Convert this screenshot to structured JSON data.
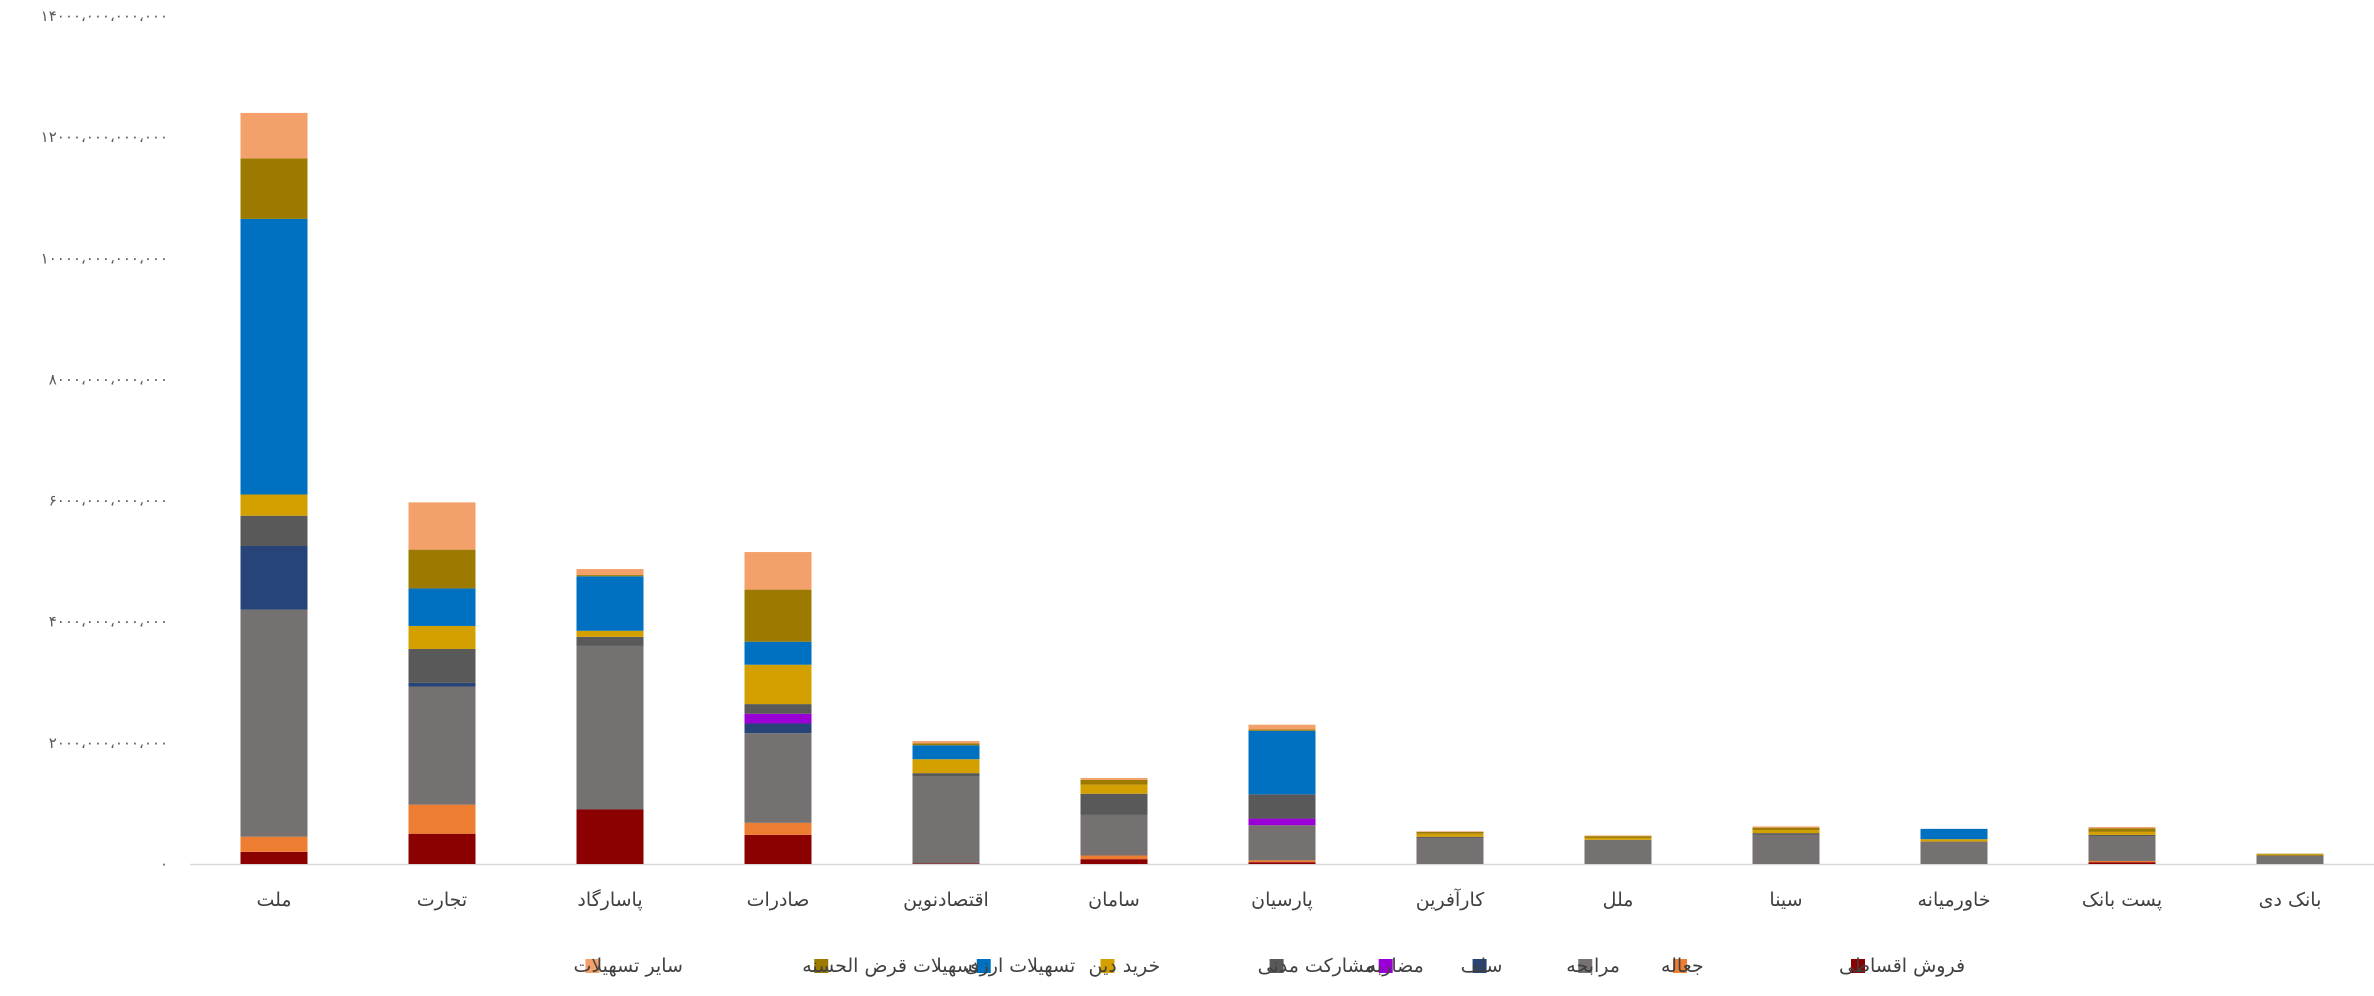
{
  "chart_data": {
    "type": "bar",
    "stacked": true,
    "title": "",
    "xlabel": "",
    "ylabel": "",
    "ylim": [
      0,
      14000000000000
    ],
    "y_ticks": [
      {
        "value": 0,
        "label": "۰"
      },
      {
        "value": 2000000000000,
        "label": "۲۰۰۰،۰۰۰،۰۰۰،۰۰۰"
      },
      {
        "value": 4000000000000,
        "label": "۴۰۰۰،۰۰۰،۰۰۰،۰۰۰"
      },
      {
        "value": 6000000000000,
        "label": "۶۰۰۰،۰۰۰،۰۰۰،۰۰۰"
      },
      {
        "value": 8000000000000,
        "label": "۸۰۰۰،۰۰۰،۰۰۰،۰۰۰"
      },
      {
        "value": 10000000000000,
        "label": "۱۰۰۰۰،۰۰۰،۰۰۰،۰۰۰"
      },
      {
        "value": 12000000000000,
        "label": "۱۲۰۰۰،۰۰۰،۰۰۰،۰۰۰"
      },
      {
        "value": 14000000000000,
        "label": "۱۴۰۰۰،۰۰۰،۰۰۰،۰۰۰"
      }
    ],
    "grid": false,
    "legend_position": "bottom",
    "categories": [
      "ملت",
      "تجارت",
      "پاسارگاد",
      "صادرات",
      "اقتصادنوین",
      "سامان",
      "پارسیان",
      "کارآفرین",
      "ملل",
      "سینا",
      "خاورمیانه",
      "پست بانک",
      "بانک دی"
    ],
    "series": [
      {
        "name": "فروش اقساطی",
        "color": "#8B0000",
        "values": [
          200000000000,
          500000000000,
          900000000000,
          480000000000,
          10000000000,
          80000000000,
          30000000000,
          0,
          0,
          0,
          0,
          30000000000,
          0
        ]
      },
      {
        "name": "جعاله",
        "color": "#ED7D31",
        "values": [
          250000000000,
          480000000000,
          0,
          200000000000,
          0,
          60000000000,
          30000000000,
          0,
          0,
          0,
          0,
          20000000000,
          0
        ]
      },
      {
        "name": "مرابحه",
        "color": "#767171",
        "values": [
          3750000000000,
          1950000000000,
          2700000000000,
          1480000000000,
          1430000000000,
          670000000000,
          580000000000,
          430000000000,
          400000000000,
          480000000000,
          370000000000,
          400000000000,
          120000000000
        ]
      },
      {
        "name": "سلف",
        "color": "#264478",
        "values": [
          1050000000000,
          60000000000,
          0,
          160000000000,
          0,
          0,
          0,
          0,
          0,
          0,
          0,
          0,
          0
        ]
      },
      {
        "name": "مضاربه",
        "color": "#9A00D5",
        "values": [
          0,
          0,
          0,
          160000000000,
          0,
          0,
          110000000000,
          0,
          0,
          0,
          0,
          0,
          0
        ]
      },
      {
        "name": "مشارکت مدنی",
        "color": "#595959",
        "values": [
          500000000000,
          560000000000,
          150000000000,
          160000000000,
          60000000000,
          350000000000,
          400000000000,
          20000000000,
          0,
          30000000000,
          0,
          30000000000,
          20000000000
        ]
      },
      {
        "name": "خرید دین",
        "color": "#D4A000",
        "values": [
          350000000000,
          380000000000,
          100000000000,
          650000000000,
          230000000000,
          150000000000,
          0,
          50000000000,
          30000000000,
          50000000000,
          40000000000,
          50000000000,
          20000000000
        ]
      },
      {
        "name": "تسهیلات ارزی",
        "color": "#0070C0",
        "values": [
          4550000000000,
          620000000000,
          900000000000,
          380000000000,
          230000000000,
          0,
          1050000000000,
          0,
          0,
          0,
          170000000000,
          0,
          0
        ]
      },
      {
        "name": "تسهیلات قرض الحسنه",
        "color": "#9C7A00",
        "values": [
          1000000000000,
          640000000000,
          20000000000,
          860000000000,
          30000000000,
          80000000000,
          20000000000,
          30000000000,
          30000000000,
          40000000000,
          0,
          60000000000,
          10000000000
        ]
      },
      {
        "name": "سایر تسهیلات",
        "color": "#F4A06A",
        "values": [
          750000000000,
          780000000000,
          100000000000,
          620000000000,
          40000000000,
          30000000000,
          80000000000,
          10000000000,
          10000000000,
          20000000000,
          0,
          20000000000,
          0
        ]
      }
    ]
  }
}
